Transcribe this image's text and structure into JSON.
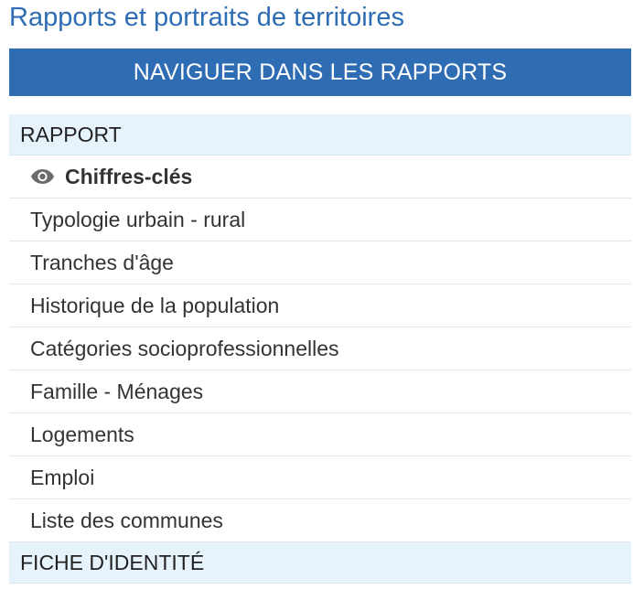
{
  "page": {
    "title": "Rapports et portraits de territoires"
  },
  "banner": {
    "label": "NAVIGUER DANS LES RAPPORTS"
  },
  "sections": {
    "rapport": {
      "label": "RAPPORT",
      "items": [
        {
          "label": "Chiffres-clés",
          "active": true,
          "icon": "eye-icon"
        },
        {
          "label": "Typologie urbain - rural"
        },
        {
          "label": "Tranches d'âge"
        },
        {
          "label": "Historique de la population"
        },
        {
          "label": "Catégories socioprofessionnelles"
        },
        {
          "label": "Famille - Ménages"
        },
        {
          "label": "Logements"
        },
        {
          "label": "Emploi"
        },
        {
          "label": "Liste des communes"
        }
      ]
    },
    "fiche": {
      "label": "FICHE D'IDENTITÉ"
    }
  },
  "colors": {
    "accent": "#2e6db4",
    "section_bg": "#e7f3fb"
  }
}
